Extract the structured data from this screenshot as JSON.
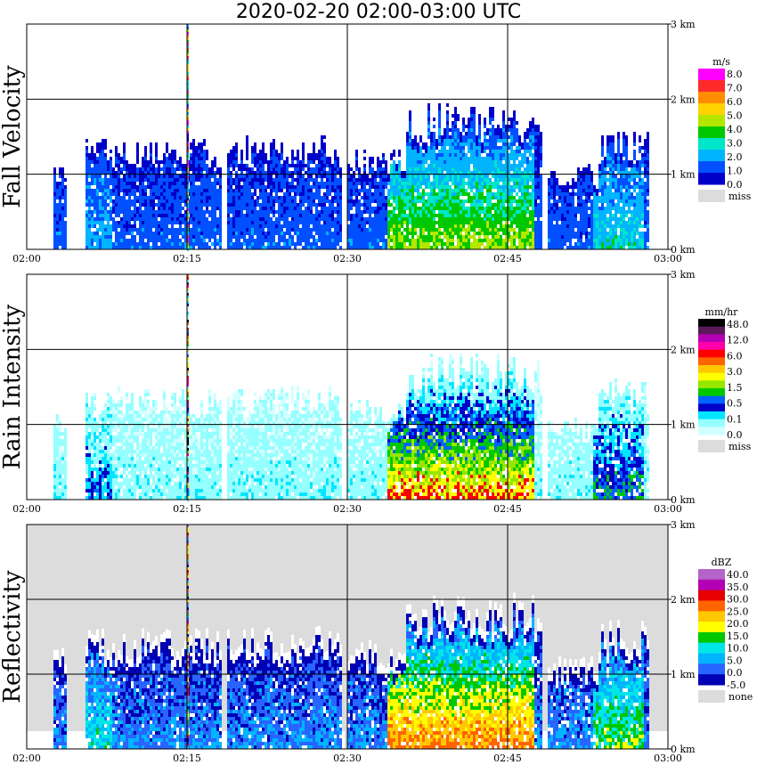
{
  "title": "2020-02-20   02:00-03:00 UTC",
  "chart_data": [
    {
      "type": "heatmap",
      "name": "Fall Velocity",
      "ylabel": "Fall Velocity",
      "x_ticks": [
        "02:00",
        "02:15",
        "02:30",
        "02:45",
        "03:00"
      ],
      "y_ticks": [
        "0 km",
        "1 km",
        "2 km",
        "3 km"
      ],
      "ylim": [
        0,
        3.0
      ],
      "legend": {
        "unit": "m/s",
        "labels": [
          "8.0",
          "7.0",
          "6.0",
          "5.0",
          "4.0",
          "3.0",
          "2.0",
          "1.0",
          "0.0"
        ],
        "colors": [
          "#ff00ff",
          "#ff2a2a",
          "#ff8c00",
          "#ffd200",
          "#b4e600",
          "#00c800",
          "#00e6c8",
          "#00b4ff",
          "#0050ff",
          "#0000c8"
        ],
        "missing_label": "miss",
        "missing_color": "#dcdcdc"
      }
    },
    {
      "type": "heatmap",
      "name": "Rain Intensity",
      "ylabel": "Rain Intensity",
      "x_ticks": [
        "02:00",
        "02:15",
        "02:30",
        "02:45",
        "03:00"
      ],
      "y_ticks": [
        "0 km",
        "1 km",
        "2 km",
        "3 km"
      ],
      "ylim": [
        0,
        3.0
      ],
      "legend": {
        "unit": "mm/hr",
        "labels": [
          "48.0",
          "12.0",
          "6.0",
          "3.0",
          "1.5",
          "0.5",
          "0.1",
          "0.0"
        ],
        "colors": [
          "#000000",
          "#5a1a5a",
          "#b400b4",
          "#ff00aa",
          "#ff0000",
          "#ff6400",
          "#ffc800",
          "#ffff00",
          "#96e600",
          "#00c800",
          "#0064ff",
          "#0000c8",
          "#00e6ff",
          "#96ffff",
          "#d2ffff"
        ],
        "missing_label": "miss",
        "missing_color": "#dcdcdc"
      }
    },
    {
      "type": "heatmap",
      "name": "Reflectivity",
      "ylabel": "Reflectivity",
      "x_ticks": [
        "02:00",
        "02:15",
        "02:30",
        "02:45",
        "03:00"
      ],
      "y_ticks": [
        "0 km",
        "1 km",
        "2 km",
        "3 km"
      ],
      "ylim": [
        0,
        3.0
      ],
      "legend": {
        "unit": "dBZ",
        "labels": [
          "40.0",
          "35.0",
          "30.0",
          "25.0",
          "20.0",
          "15.0",
          "10.0",
          "5.0",
          "0.0",
          "-5.0"
        ],
        "colors": [
          "#b464c8",
          "#b400b4",
          "#e60000",
          "#ff6400",
          "#ffc800",
          "#ffff00",
          "#00c800",
          "#00e6e6",
          "#00b4ff",
          "#2864ff",
          "#0000b4"
        ],
        "missing_label": "none",
        "missing_color": "#dcdcdc"
      }
    }
  ]
}
